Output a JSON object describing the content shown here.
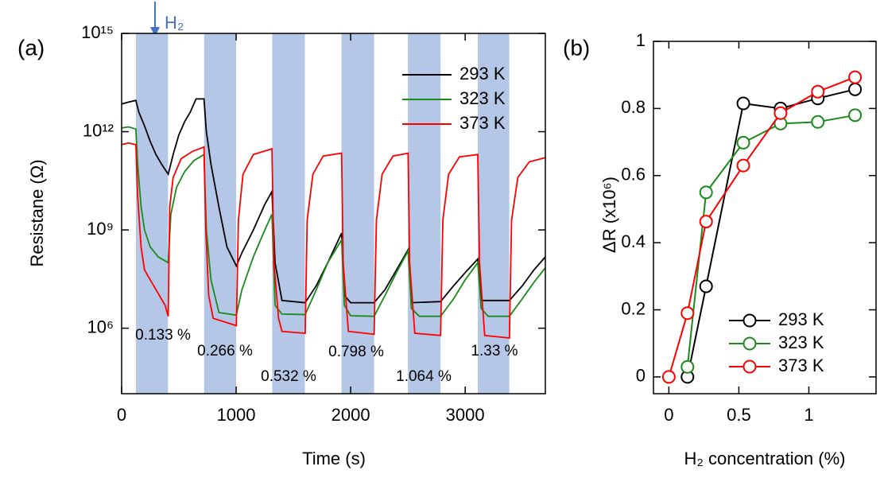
{
  "chart_data": [
    {
      "type": "line",
      "panel": "(a)",
      "xlabel": "Time (s)",
      "ylabel": "Resistane (Ω)",
      "yscale": "log",
      "xlim": [
        0,
        3700
      ],
      "ylim": [
        10000.0,
        1000000000000000.0
      ],
      "xticks": [
        0,
        1000,
        2000,
        3000
      ],
      "yticks": [
        {
          "value": 1000000.0,
          "label": "10⁶"
        },
        {
          "value": 1000000000.0,
          "label": "10⁹"
        },
        {
          "value": 1000000000000.0,
          "label": "10¹²"
        },
        {
          "value": 1000000000000000.0,
          "label": "10¹⁵"
        }
      ],
      "legend": "upper right",
      "exposure_label": "H₂",
      "exposure_color": "#b4c7e7",
      "exposures": [
        [
          125,
          405
        ],
        [
          720,
          1000
        ],
        [
          1315,
          1600
        ],
        [
          1920,
          2205
        ],
        [
          2500,
          2785
        ],
        [
          3110,
          3385
        ]
      ],
      "exposure_labels": [
        "0.133 %",
        "0.266 %",
        "0.532 %",
        "0.798 %",
        "1.064 %",
        "1.33 %"
      ],
      "series": [
        {
          "name": "293 K",
          "color": "#000000",
          "x": [
            0,
            60,
            124,
            150,
            200,
            250,
            300,
            350,
            407,
            450,
            500,
            550,
            600,
            650,
            719,
            740,
            780,
            850,
            920,
            1002,
            1050,
            1150,
            1250,
            1313,
            1340,
            1400,
            1603,
            1700,
            1800,
            1921,
            1945,
            2000,
            2205,
            2300,
            2400,
            2502,
            2530,
            2785,
            2900,
            3000,
            3110,
            3140,
            3386,
            3500,
            3600,
            3700
          ],
          "values": [
            7000000000000.0,
            8000000000000.0,
            9000000000000.0,
            4000000000000.0,
            1500000000000.0,
            500000000000.0,
            200000000000.0,
            100000000000.0,
            50000000000.0,
            200000000000.0,
            800000000000.0,
            2000000000000.0,
            4000000000000.0,
            10000000000000.0,
            10000000000000.0,
            1000000000000.0,
            100000000000.0,
            5000000000.0,
            300000000.0,
            80000000.0,
            200000000.0,
            1000000000.0,
            6000000000.0,
            15000000000.0,
            100000000.0,
            7000000.0,
            6000000.0,
            20000000.0,
            100000000.0,
            800000000.0,
            10000000.0,
            6000000.0,
            6000000.0,
            15000000.0,
            60000000.0,
            250000000.0,
            6000000.0,
            6500000.0,
            20000000.0,
            50000000.0,
            130000000.0,
            7000000.0,
            7000000.0,
            20000000.0,
            60000000.0,
            150000000.0
          ]
        },
        {
          "name": "323 K",
          "color": "#1a8a1a",
          "x": [
            0,
            60,
            124,
            140,
            170,
            200,
            250,
            320,
            407,
            430,
            480,
            550,
            630,
            719,
            740,
            780,
            850,
            1002,
            1050,
            1150,
            1250,
            1313,
            1340,
            1400,
            1603,
            1700,
            1800,
            1921,
            1945,
            2000,
            2205,
            2300,
            2400,
            2502,
            2530,
            2600,
            2785,
            2900,
            3000,
            3110,
            3140,
            3200,
            3386,
            3500,
            3600,
            3700
          ],
          "values": [
            1300000000000.0,
            1400000000000.0,
            1200000000000.0,
            100000000000.0,
            5000000000.0,
            1000000000.0,
            300000000.0,
            150000000.0,
            100000000.0,
            3000000000.0,
            20000000000.0,
            60000000000.0,
            130000000000.0,
            200000000000.0,
            1000000000.0,
            30000000.0,
            3000000.0,
            2500000.0,
            15000000.0,
            150000000.0,
            1000000000.0,
            3000000000.0,
            5000000.0,
            2700000.0,
            2600000.0,
            15000000.0,
            100000000.0,
            500000000.0,
            5000000.0,
            2400000.0,
            2300000.0,
            10000000.0,
            50000000.0,
            230000000.0,
            4000000.0,
            2300000.0,
            2300000.0,
            8000000.0,
            30000000.0,
            100000000.0,
            4000000.0,
            2300000.0,
            2300000.0,
            8000000.0,
            25000000.0,
            70000000.0
          ]
        },
        {
          "name": "373 K",
          "color": "#ff0000",
          "x": [
            0,
            60,
            124,
            140,
            170,
            200,
            300,
            380,
            407,
            420,
            450,
            520,
            620,
            719,
            735,
            760,
            800,
            1002,
            1020,
            1060,
            1150,
            1313,
            1330,
            1370,
            1400,
            1603,
            1620,
            1670,
            1760,
            1921,
            1935,
            1980,
            2205,
            2225,
            2275,
            2370,
            2502,
            2515,
            2560,
            2785,
            2805,
            2855,
            2950,
            3110,
            3125,
            3170,
            3386,
            3405,
            3460,
            3560,
            3700
          ],
          "values": [
            400000000000.0,
            450000000000.0,
            400000000000.0,
            10000000000.0,
            300000000.0,
            60000000.0,
            15000000.0,
            5000000.0,
            2300000.0,
            5000000000.0,
            40000000000.0,
            150000000000.0,
            250000000000.0,
            340000000000.0,
            1000000000.0,
            10000000.0,
            2000000.0,
            1200000.0,
            2000000000.0,
            50000000000.0,
            200000000000.0,
            300000000000.0,
            100000000.0,
            2000000.0,
            800000.0,
            700000.0,
            2000000000.0,
            50000000000.0,
            180000000000.0,
            220000000000.0,
            100000000.0,
            800000.0,
            650000.0,
            2000000000.0,
            50000000000.0,
            180000000000.0,
            220000000000.0,
            100000000.0,
            700000.0,
            600000.0,
            2000000000.0,
            50000000000.0,
            170000000000.0,
            200000000000.0,
            100000000.0,
            600000.0,
            500000.0,
            2000000000.0,
            40000000000.0,
            120000000000.0,
            160000000000.0
          ]
        }
      ]
    },
    {
      "type": "line",
      "panel": "(b)",
      "xlabel": "H₂ concentration (%)",
      "ylabel": "ΔR (x10⁶)",
      "markers": true,
      "xlim": [
        -0.11,
        1.48
      ],
      "ylim": [
        -0.05,
        1
      ],
      "xticks": [
        0,
        0.5,
        1
      ],
      "yticks": [
        0,
        0.2,
        0.4,
        0.6,
        0.8,
        1
      ],
      "legend": "lower right",
      "x": [
        0,
        0.133,
        0.266,
        0.532,
        0.798,
        1.064,
        1.33
      ],
      "series": [
        {
          "name": "293 K",
          "color": "#000000",
          "values": [
            null,
            0,
            0.27,
            0.815,
            0.8,
            0.83,
            0.857
          ]
        },
        {
          "name": "323 K",
          "color": "#1a8a1a",
          "values": [
            null,
            0.03,
            0.55,
            0.698,
            0.755,
            0.76,
            0.78
          ]
        },
        {
          "name": "373 K",
          "color": "#ff0000",
          "values": [
            0,
            0.19,
            0.463,
            0.63,
            0.786,
            0.85,
            0.893
          ]
        }
      ]
    }
  ]
}
